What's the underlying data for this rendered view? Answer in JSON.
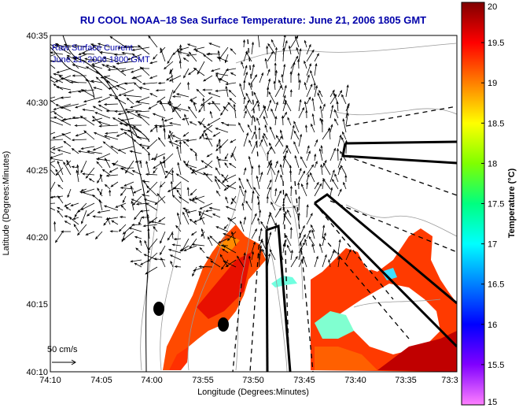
{
  "title": "RU COOL  NOAA–18  Sea Surface Temperature:  June 21, 2006 1805 GMT",
  "legend": {
    "line1": "Raw Surface Current",
    "line2": "June 21, 2006 1800 GMT"
  },
  "axes": {
    "xlabel": "Longitude (Degrees:Minutes)",
    "ylabel": "Latitude (Degrees:Minutes)",
    "x_ticks": [
      "74:10",
      "74:05",
      "74:00",
      "73:55",
      "73:50",
      "73:45",
      "73:40",
      "73:35",
      "73:3"
    ],
    "y_ticks": [
      "40:35",
      "40:30",
      "40:25",
      "40:20",
      "40:15",
      "40:10"
    ]
  },
  "scale_vector_label": "50 cm/s",
  "colorbar": {
    "label": "Temperature (°C)",
    "min": 15,
    "max": 20,
    "ticks": [
      "20",
      "19.5",
      "19",
      "18.5",
      "18",
      "17.5",
      "17",
      "16.5",
      "16",
      "15.5",
      "15"
    ]
  },
  "colors": {
    "title": "#0000aa",
    "legend_text": "#0000aa",
    "vectors": "#000000",
    "coastline": "#000000",
    "bathymetry": "#999999"
  }
}
